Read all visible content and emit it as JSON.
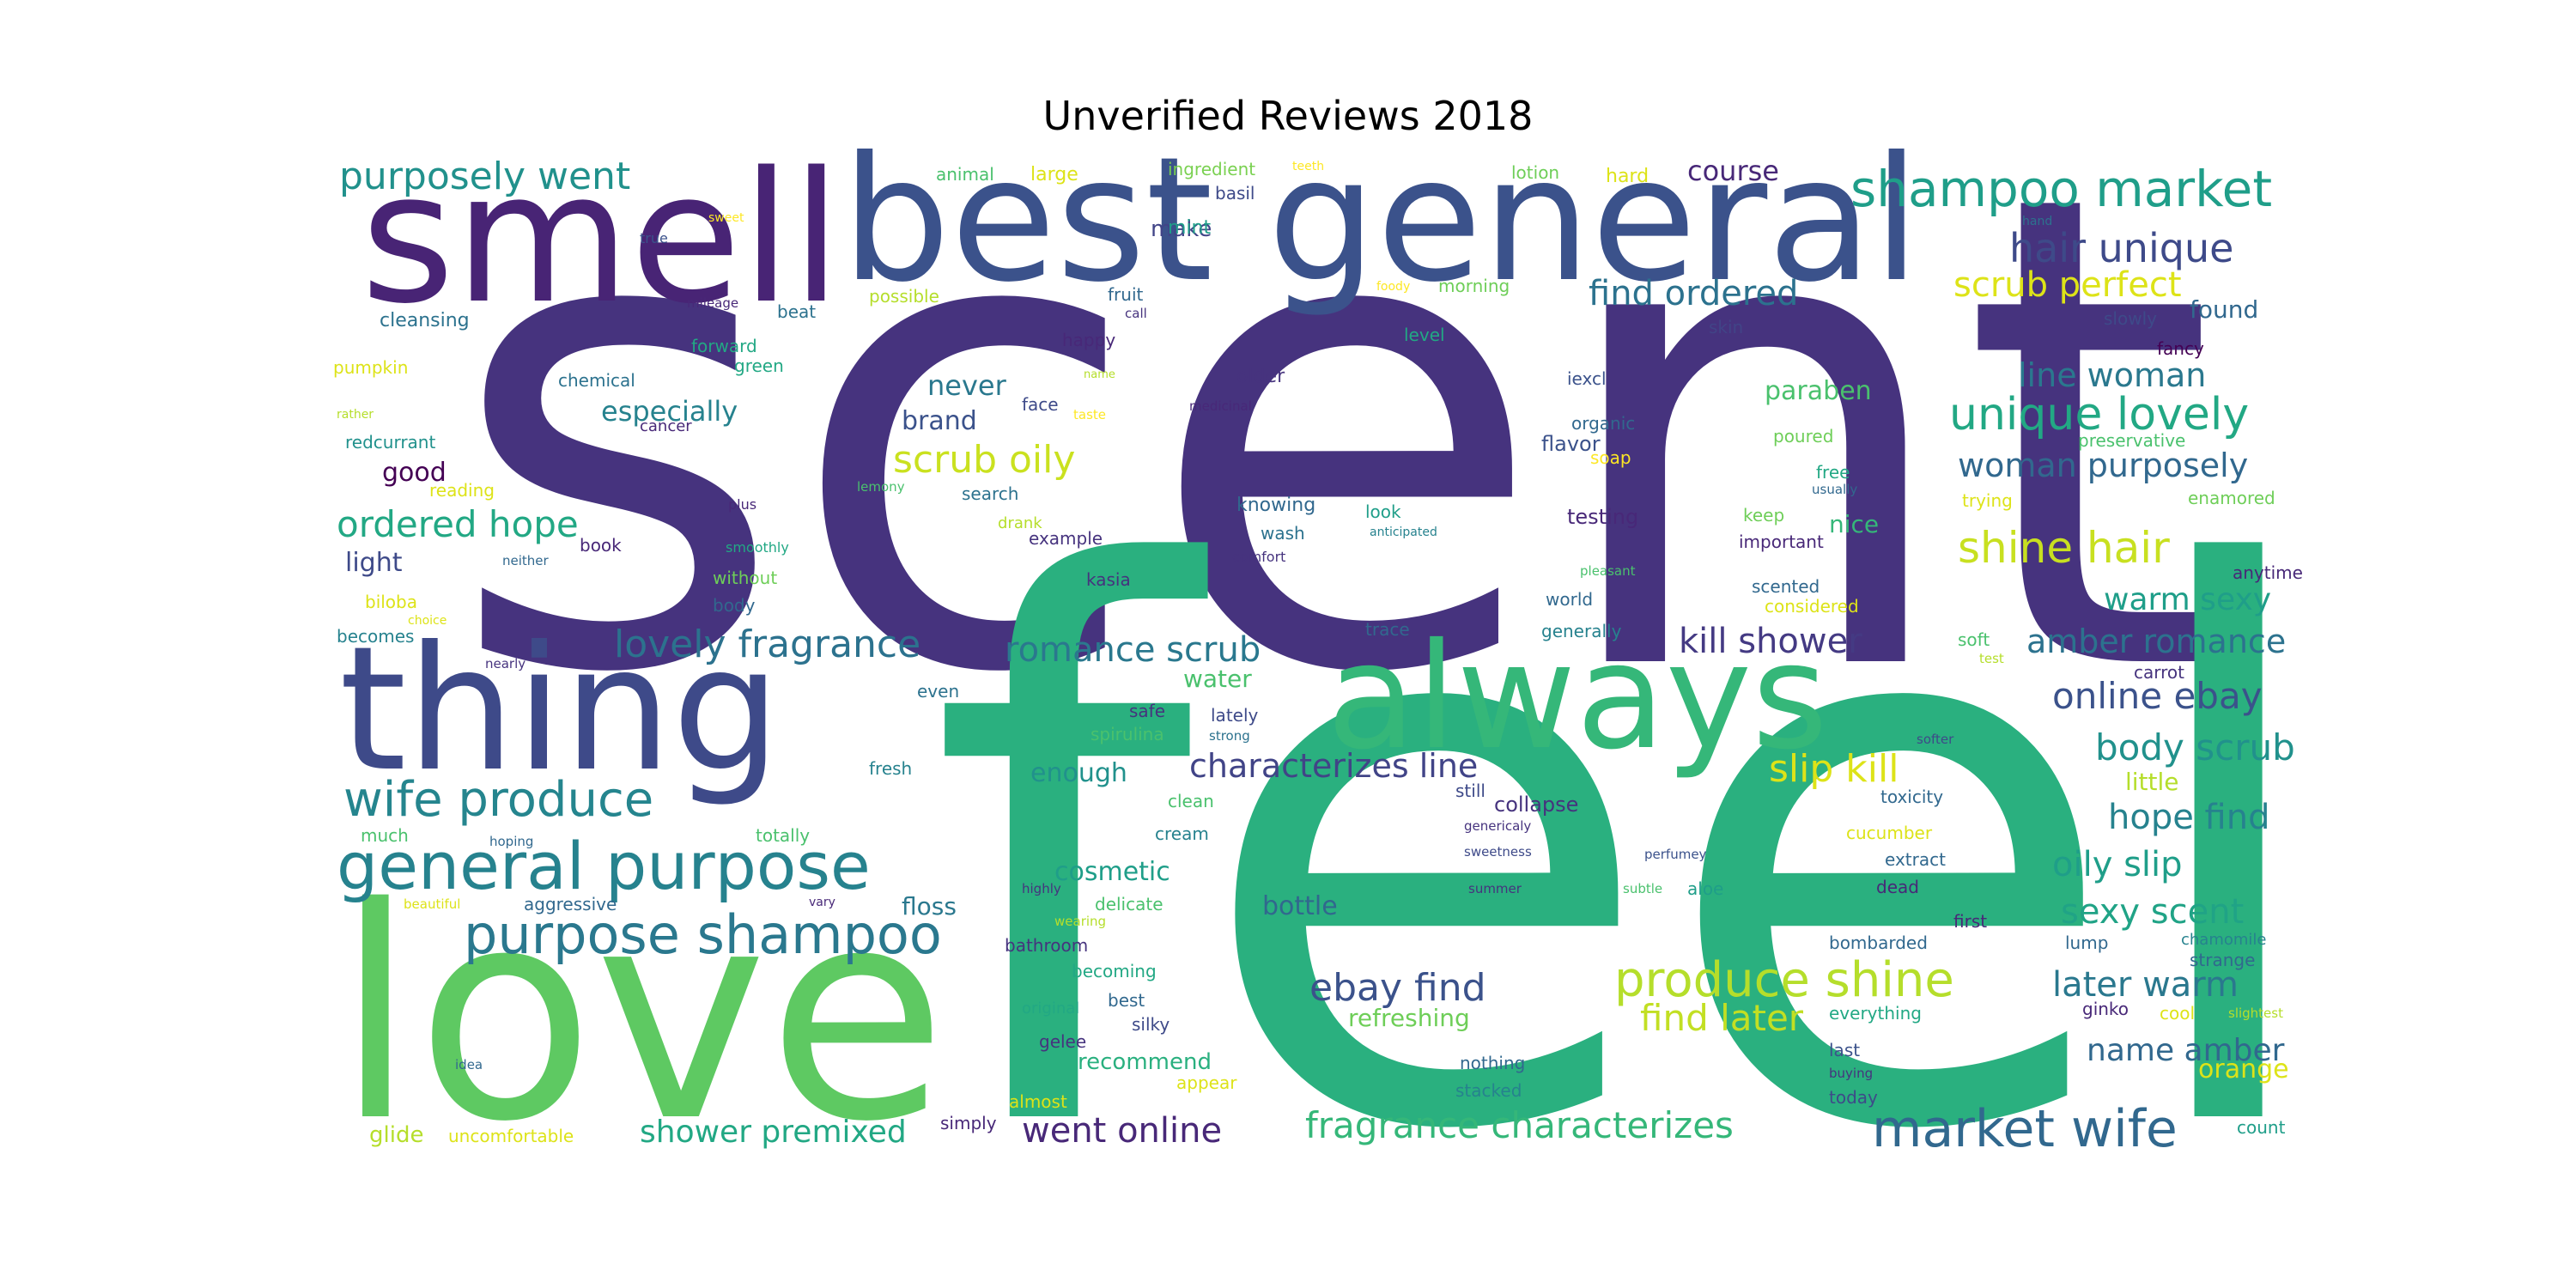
{
  "title": "Unverified Reviews 2018",
  "colors": {
    "purple_dark": "#482878",
    "purple": "#46337e",
    "indigo": "#3e4a89",
    "blue": "#31688e",
    "teal_blue": "#26828e",
    "teal": "#1f9e89",
    "green_teal": "#2ab07f",
    "green": "#35b779",
    "light_green": "#6ece58",
    "lime": "#b5de2b",
    "yellow": "#dde318"
  },
  "words": [
    {
      "text": "scent",
      "c": "#46337e"
    },
    {
      "text": "feel",
      "c": "#2ab07f"
    },
    {
      "text": "love",
      "c": "#5ec962"
    },
    {
      "text": "smell",
      "c": "#482475"
    },
    {
      "text": "best general",
      "c": "#3b528b"
    },
    {
      "text": "thing",
      "c": "#3e4a89"
    },
    {
      "text": "always",
      "c": "#35b779"
    },
    {
      "text": "general purpose",
      "c": "#26828e"
    },
    {
      "text": "wife produce",
      "c": "#25858e"
    },
    {
      "text": "purpose shampoo",
      "c": "#2a788e"
    },
    {
      "text": "market wife",
      "c": "#31688e"
    },
    {
      "text": "shampoo market",
      "c": "#1f9e89"
    },
    {
      "text": "purposely went",
      "c": "#21918c"
    },
    {
      "text": "hair unique",
      "c": "#3e4a89"
    },
    {
      "text": "unique lovely",
      "c": "#22a884"
    },
    {
      "text": "shine hair",
      "c": "#c8e020"
    },
    {
      "text": "produce shine",
      "c": "#b5de2b"
    },
    {
      "text": "lovely fragrance",
      "c": "#2c728e"
    },
    {
      "text": "romance scrub",
      "c": "#2a788e"
    },
    {
      "text": "characterizes line",
      "c": "#414487"
    },
    {
      "text": "fragrance characterizes",
      "c": "#35b779"
    },
    {
      "text": "shower premixed",
      "c": "#22a884"
    },
    {
      "text": "went online",
      "c": "#482878"
    },
    {
      "text": "ebay find",
      "c": "#3b528b"
    },
    {
      "text": "find later",
      "c": "#c2df23"
    },
    {
      "text": "find ordered",
      "c": "#2c728e"
    },
    {
      "text": "scrub perfect",
      "c": "#dde318"
    },
    {
      "text": "scrub oily",
      "c": "#cae11f"
    },
    {
      "text": "ordered hope",
      "c": "#22a884"
    },
    {
      "text": "woman purposely",
      "c": "#31688e"
    },
    {
      "text": "line woman",
      "c": "#2a788e"
    },
    {
      "text": "kill shower",
      "c": "#443a83"
    },
    {
      "text": "amber romance",
      "c": "#2c728e"
    },
    {
      "text": "warm sexy",
      "c": "#1f9e89"
    },
    {
      "text": "online ebay",
      "c": "#3b528b"
    },
    {
      "text": "slip kill",
      "c": "#dde318"
    },
    {
      "text": "body scrub",
      "c": "#21918c"
    },
    {
      "text": "hope find",
      "c": "#26828e"
    },
    {
      "text": "oily slip",
      "c": "#1f9e89"
    },
    {
      "text": "sexy scent",
      "c": "#20a386"
    },
    {
      "text": "later warm",
      "c": "#2a788e"
    },
    {
      "text": "name amber",
      "c": "#31688e"
    },
    {
      "text": "course",
      "c": "#482878"
    },
    {
      "text": "paraben",
      "c": "#4ac16d"
    },
    {
      "text": "especially",
      "c": "#26828e"
    },
    {
      "text": "never",
      "c": "#2a788e"
    },
    {
      "text": "brand",
      "c": "#3b528b"
    },
    {
      "text": "good",
      "c": "#440154"
    },
    {
      "text": "light",
      "c": "#3e4a89"
    },
    {
      "text": "enough",
      "c": "#21918c"
    },
    {
      "text": "water",
      "c": "#4ac16d"
    },
    {
      "text": "cosmetic",
      "c": "#1f9e89"
    },
    {
      "text": "bottle",
      "c": "#31688e"
    },
    {
      "text": "floss",
      "c": "#2a788e"
    },
    {
      "text": "make",
      "c": "#414487"
    },
    {
      "text": "found",
      "c": "#31688e"
    },
    {
      "text": "little",
      "c": "#b5de2b"
    },
    {
      "text": "refreshing",
      "c": "#6ece58"
    },
    {
      "text": "recommend",
      "c": "#2ab07f"
    },
    {
      "text": "orange",
      "c": "#dde318"
    },
    {
      "text": "glide",
      "c": "#b5de2b"
    },
    {
      "text": "flavor",
      "c": "#3b528b"
    },
    {
      "text": "testing",
      "c": "#482878"
    },
    {
      "text": "nice",
      "c": "#35b779"
    },
    {
      "text": "collapse",
      "c": "#46337e"
    },
    {
      "text": "animal",
      "c": "#4ac16d"
    },
    {
      "text": "large",
      "c": "#dde318"
    },
    {
      "text": "ingredient",
      "c": "#7ad151"
    },
    {
      "text": "teeth",
      "c": "#fde725"
    },
    {
      "text": "basil",
      "c": "#3e4a89"
    },
    {
      "text": "lotion",
      "c": "#6ece58"
    },
    {
      "text": "hard",
      "c": "#dde318"
    },
    {
      "text": "true",
      "c": "#3b528b"
    },
    {
      "text": "sweet",
      "c": "#fde725"
    },
    {
      "text": "hand",
      "c": "#2c728e"
    },
    {
      "text": "mint",
      "c": "#1f9e89"
    },
    {
      "text": "cleansing",
      "c": "#2c728e"
    },
    {
      "text": "mileage",
      "c": "#482878"
    },
    {
      "text": "beat",
      "c": "#2c728e"
    },
    {
      "text": "possible",
      "c": "#b5de2b"
    },
    {
      "text": "fruit",
      "c": "#31688e"
    },
    {
      "text": "call",
      "c": "#46337e"
    },
    {
      "text": "foody",
      "c": "#fde725"
    },
    {
      "text": "morning",
      "c": "#6ece58"
    },
    {
      "text": "slowly",
      "c": "#3e4a89"
    },
    {
      "text": "forward",
      "c": "#22a884"
    },
    {
      "text": "green",
      "c": "#22a884"
    },
    {
      "text": "happy",
      "c": "#482878"
    },
    {
      "text": "level",
      "c": "#22a884"
    },
    {
      "text": "skin",
      "c": "#414487"
    },
    {
      "text": "fancy",
      "c": "#440154"
    },
    {
      "text": "pumpkin",
      "c": "#dde318"
    },
    {
      "text": "chemical",
      "c": "#2c728e"
    },
    {
      "text": "older",
      "c": "#46337e"
    },
    {
      "text": "name",
      "c": "#b5de2b"
    },
    {
      "text": "iexcl",
      "c": "#3b528b"
    },
    {
      "text": "face",
      "c": "#3e4a89"
    },
    {
      "text": "taste",
      "c": "#fde725"
    },
    {
      "text": "medicinal",
      "c": "#482878"
    },
    {
      "text": "organic",
      "c": "#31688e"
    },
    {
      "text": "preservative",
      "c": "#4ac16d"
    },
    {
      "text": "rather",
      "c": "#b5de2b"
    },
    {
      "text": "cancer",
      "c": "#482878"
    },
    {
      "text": "soap",
      "c": "#fde725"
    },
    {
      "text": "poured",
      "c": "#6ece58"
    },
    {
      "text": "redcurrant",
      "c": "#21918c"
    },
    {
      "text": "usually",
      "c": "#31688e"
    },
    {
      "text": "reading",
      "c": "#dde318"
    },
    {
      "text": "lemony",
      "c": "#4ac16d"
    },
    {
      "text": "search",
      "c": "#2c728e"
    },
    {
      "text": "trying",
      "c": "#dde318"
    },
    {
      "text": "enamored",
      "c": "#6ece58"
    },
    {
      "text": "plus",
      "c": "#482878"
    },
    {
      "text": "drank",
      "c": "#b5de2b"
    },
    {
      "text": "knowing",
      "c": "#31688e"
    },
    {
      "text": "look",
      "c": "#1f9e89"
    },
    {
      "text": "keep",
      "c": "#6ece58"
    },
    {
      "text": "book",
      "c": "#482878"
    },
    {
      "text": "smoothly",
      "c": "#22a884"
    },
    {
      "text": "example",
      "c": "#46337e"
    },
    {
      "text": "wash",
      "c": "#2c728e"
    },
    {
      "text": "anticipated",
      "c": "#26828e"
    },
    {
      "text": "important",
      "c": "#482878"
    },
    {
      "text": "neither",
      "c": "#31688e"
    },
    {
      "text": "comfort",
      "c": "#46337e"
    },
    {
      "text": "pleasant",
      "c": "#4ac16d"
    },
    {
      "text": "anytime",
      "c": "#482878"
    },
    {
      "text": "without",
      "c": "#6ece58"
    },
    {
      "text": "kasia",
      "c": "#46337e"
    },
    {
      "text": "scented",
      "c": "#31688e"
    },
    {
      "text": "biloba",
      "c": "#dde318"
    },
    {
      "text": "body",
      "c": "#31688e"
    },
    {
      "text": "world",
      "c": "#31688e"
    },
    {
      "text": "considered",
      "c": "#dde318"
    },
    {
      "text": "choice",
      "c": "#dde318"
    },
    {
      "text": "becomes",
      "c": "#26828e"
    },
    {
      "text": "trace",
      "c": "#31688e"
    },
    {
      "text": "generally",
      "c": "#26828e"
    },
    {
      "text": "soft",
      "c": "#4ac16d"
    },
    {
      "text": "nearly",
      "c": "#46337e"
    },
    {
      "text": "test",
      "c": "#b5de2b"
    },
    {
      "text": "carrot",
      "c": "#46337e"
    },
    {
      "text": "even",
      "c": "#2c728e"
    },
    {
      "text": "safe",
      "c": "#46337e"
    },
    {
      "text": "lately",
      "c": "#3e4a89"
    },
    {
      "text": "spirulina",
      "c": "#4ac16d"
    },
    {
      "text": "strong",
      "c": "#2c728e"
    },
    {
      "text": "softer",
      "c": "#3e4a89"
    },
    {
      "text": "fresh",
      "c": "#26828e"
    },
    {
      "text": "toxicity",
      "c": "#31688e"
    },
    {
      "text": "still",
      "c": "#3e4a89"
    },
    {
      "text": "clean",
      "c": "#4ac16d"
    },
    {
      "text": "totally",
      "c": "#4ac16d"
    },
    {
      "text": "cream",
      "c": "#26828e"
    },
    {
      "text": "genericaly",
      "c": "#46337e"
    },
    {
      "text": "cucumber",
      "c": "#dde318"
    },
    {
      "text": "much",
      "c": "#4ac16d"
    },
    {
      "text": "hoping",
      "c": "#31688e"
    },
    {
      "text": "sweetness",
      "c": "#3e4a89"
    },
    {
      "text": "perfumey",
      "c": "#3b528b"
    },
    {
      "text": "extract",
      "c": "#31688e"
    },
    {
      "text": "highly",
      "c": "#46337e"
    },
    {
      "text": "summer",
      "c": "#46337e"
    },
    {
      "text": "subtle",
      "c": "#4ac16d"
    },
    {
      "text": "aloe",
      "c": "#1f9e89"
    },
    {
      "text": "dead",
      "c": "#482878"
    },
    {
      "text": "beautiful",
      "c": "#dde318"
    },
    {
      "text": "aggressive",
      "c": "#31688e"
    },
    {
      "text": "vary",
      "c": "#482878"
    },
    {
      "text": "delicate",
      "c": "#4ac16d"
    },
    {
      "text": "wearing",
      "c": "#b5de2b"
    },
    {
      "text": "first",
      "c": "#482878"
    },
    {
      "text": "bathroom",
      "c": "#46337e"
    },
    {
      "text": "bombarded",
      "c": "#31688e"
    },
    {
      "text": "lump",
      "c": "#31688e"
    },
    {
      "text": "chamomile",
      "c": "#26828e"
    },
    {
      "text": "strange",
      "c": "#31688e"
    },
    {
      "text": "becoming",
      "c": "#22a884"
    },
    {
      "text": "original",
      "c": "#22a884"
    },
    {
      "text": "best",
      "c": "#31688e"
    },
    {
      "text": "silky",
      "c": "#3e4a89"
    },
    {
      "text": "everything",
      "c": "#22a884"
    },
    {
      "text": "ginko",
      "c": "#482878"
    },
    {
      "text": "cool",
      "c": "#dde318"
    },
    {
      "text": "slightest",
      "c": "#b5de2b"
    },
    {
      "text": "gelee",
      "c": "#46337e"
    },
    {
      "text": "last",
      "c": "#3b528b"
    },
    {
      "text": "idea",
      "c": "#31688e"
    },
    {
      "text": "nothing",
      "c": "#31688e"
    },
    {
      "text": "buying",
      "c": "#46337e"
    },
    {
      "text": "almost",
      "c": "#dde318"
    },
    {
      "text": "appear",
      "c": "#dde318"
    },
    {
      "text": "stacked",
      "c": "#26828e"
    },
    {
      "text": "today",
      "c": "#3e4a89"
    },
    {
      "text": "uncomfortable",
      "c": "#dde318"
    },
    {
      "text": "simply",
      "c": "#482878"
    },
    {
      "text": "count",
      "c": "#1f9e89"
    },
    {
      "text": "free",
      "c": "#22a884"
    }
  ]
}
